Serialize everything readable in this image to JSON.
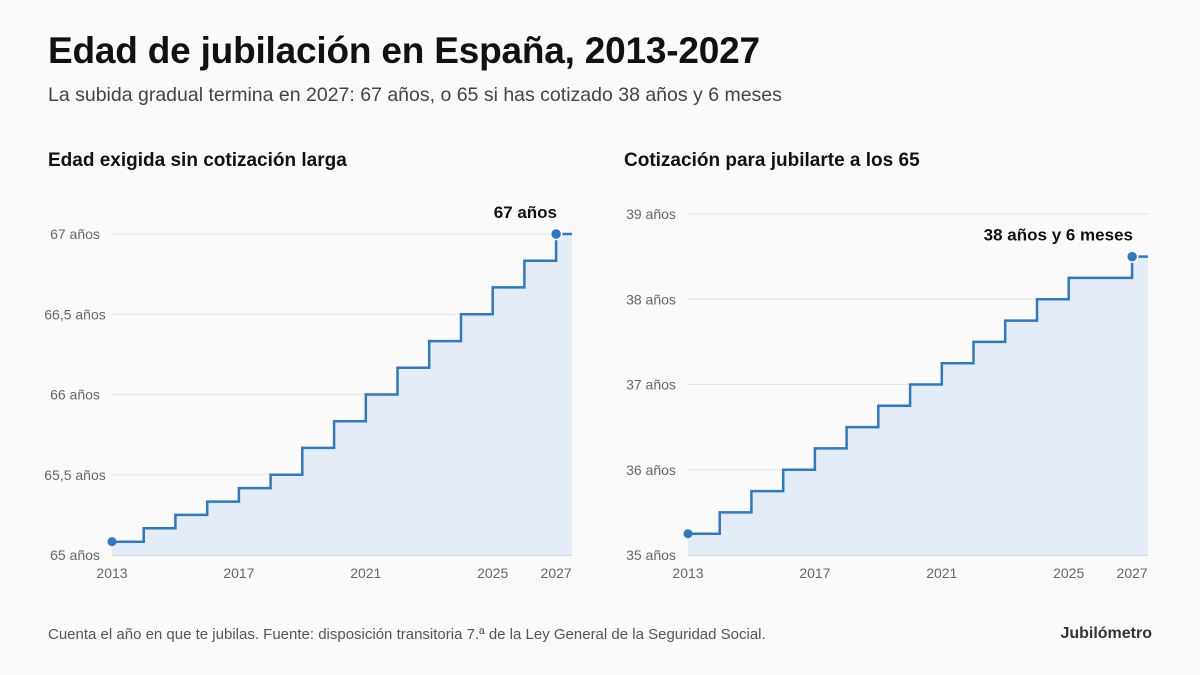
{
  "header": {
    "title": "Edad de jubilación en España, 2013-2027",
    "subtitle": "La subida gradual termina en 2027: 67 años, o 65 si has cotizado 38 años y 6 meses"
  },
  "colors": {
    "line": "#2f78c4",
    "area": "#e4edf7",
    "grid": "#e3e3e3",
    "axis": "#bbbbbb"
  },
  "chart_data": [
    {
      "type": "line",
      "step": true,
      "title": "Edad exigida sin cotización larga",
      "x": [
        2013,
        2014,
        2015,
        2016,
        2017,
        2018,
        2019,
        2020,
        2021,
        2022,
        2023,
        2024,
        2025,
        2026,
        2027
      ],
      "values": [
        65.083,
        65.167,
        65.25,
        65.333,
        65.417,
        65.5,
        65.667,
        65.833,
        66.0,
        66.167,
        66.333,
        66.5,
        66.667,
        66.833,
        67.0
      ],
      "xticks": [
        "2013",
        "2017",
        "2021",
        "2025",
        "2027"
      ],
      "yticks": [
        "65 años",
        "65,5 años",
        "66 años",
        "66,5 años",
        "67 años"
      ],
      "ylim": [
        65,
        67
      ],
      "annotation": "67 años",
      "grid": true
    },
    {
      "type": "line",
      "step": true,
      "title": "Cotización para jubilarte a los 65",
      "x": [
        2013,
        2014,
        2015,
        2016,
        2017,
        2018,
        2019,
        2020,
        2021,
        2022,
        2023,
        2024,
        2025,
        2026,
        2027
      ],
      "values": [
        35.25,
        35.5,
        35.75,
        36.0,
        36.25,
        36.5,
        36.75,
        37.0,
        37.25,
        37.5,
        37.75,
        38.0,
        38.25,
        38.25,
        38.5
      ],
      "xticks": [
        "2013",
        "2017",
        "2021",
        "2025",
        "2027"
      ],
      "yticks": [
        "35 años",
        "36 años",
        "37 años",
        "38 años",
        "39 años"
      ],
      "ylim": [
        35,
        39
      ],
      "annotation": "38 años y 6 meses",
      "grid": true
    }
  ],
  "footer": {
    "note": "Cuenta el año en que te jubilas. Fuente: disposición transitoria 7.ª de la Ley General de la Seguridad Social.",
    "brand": "Jubilómetro"
  }
}
